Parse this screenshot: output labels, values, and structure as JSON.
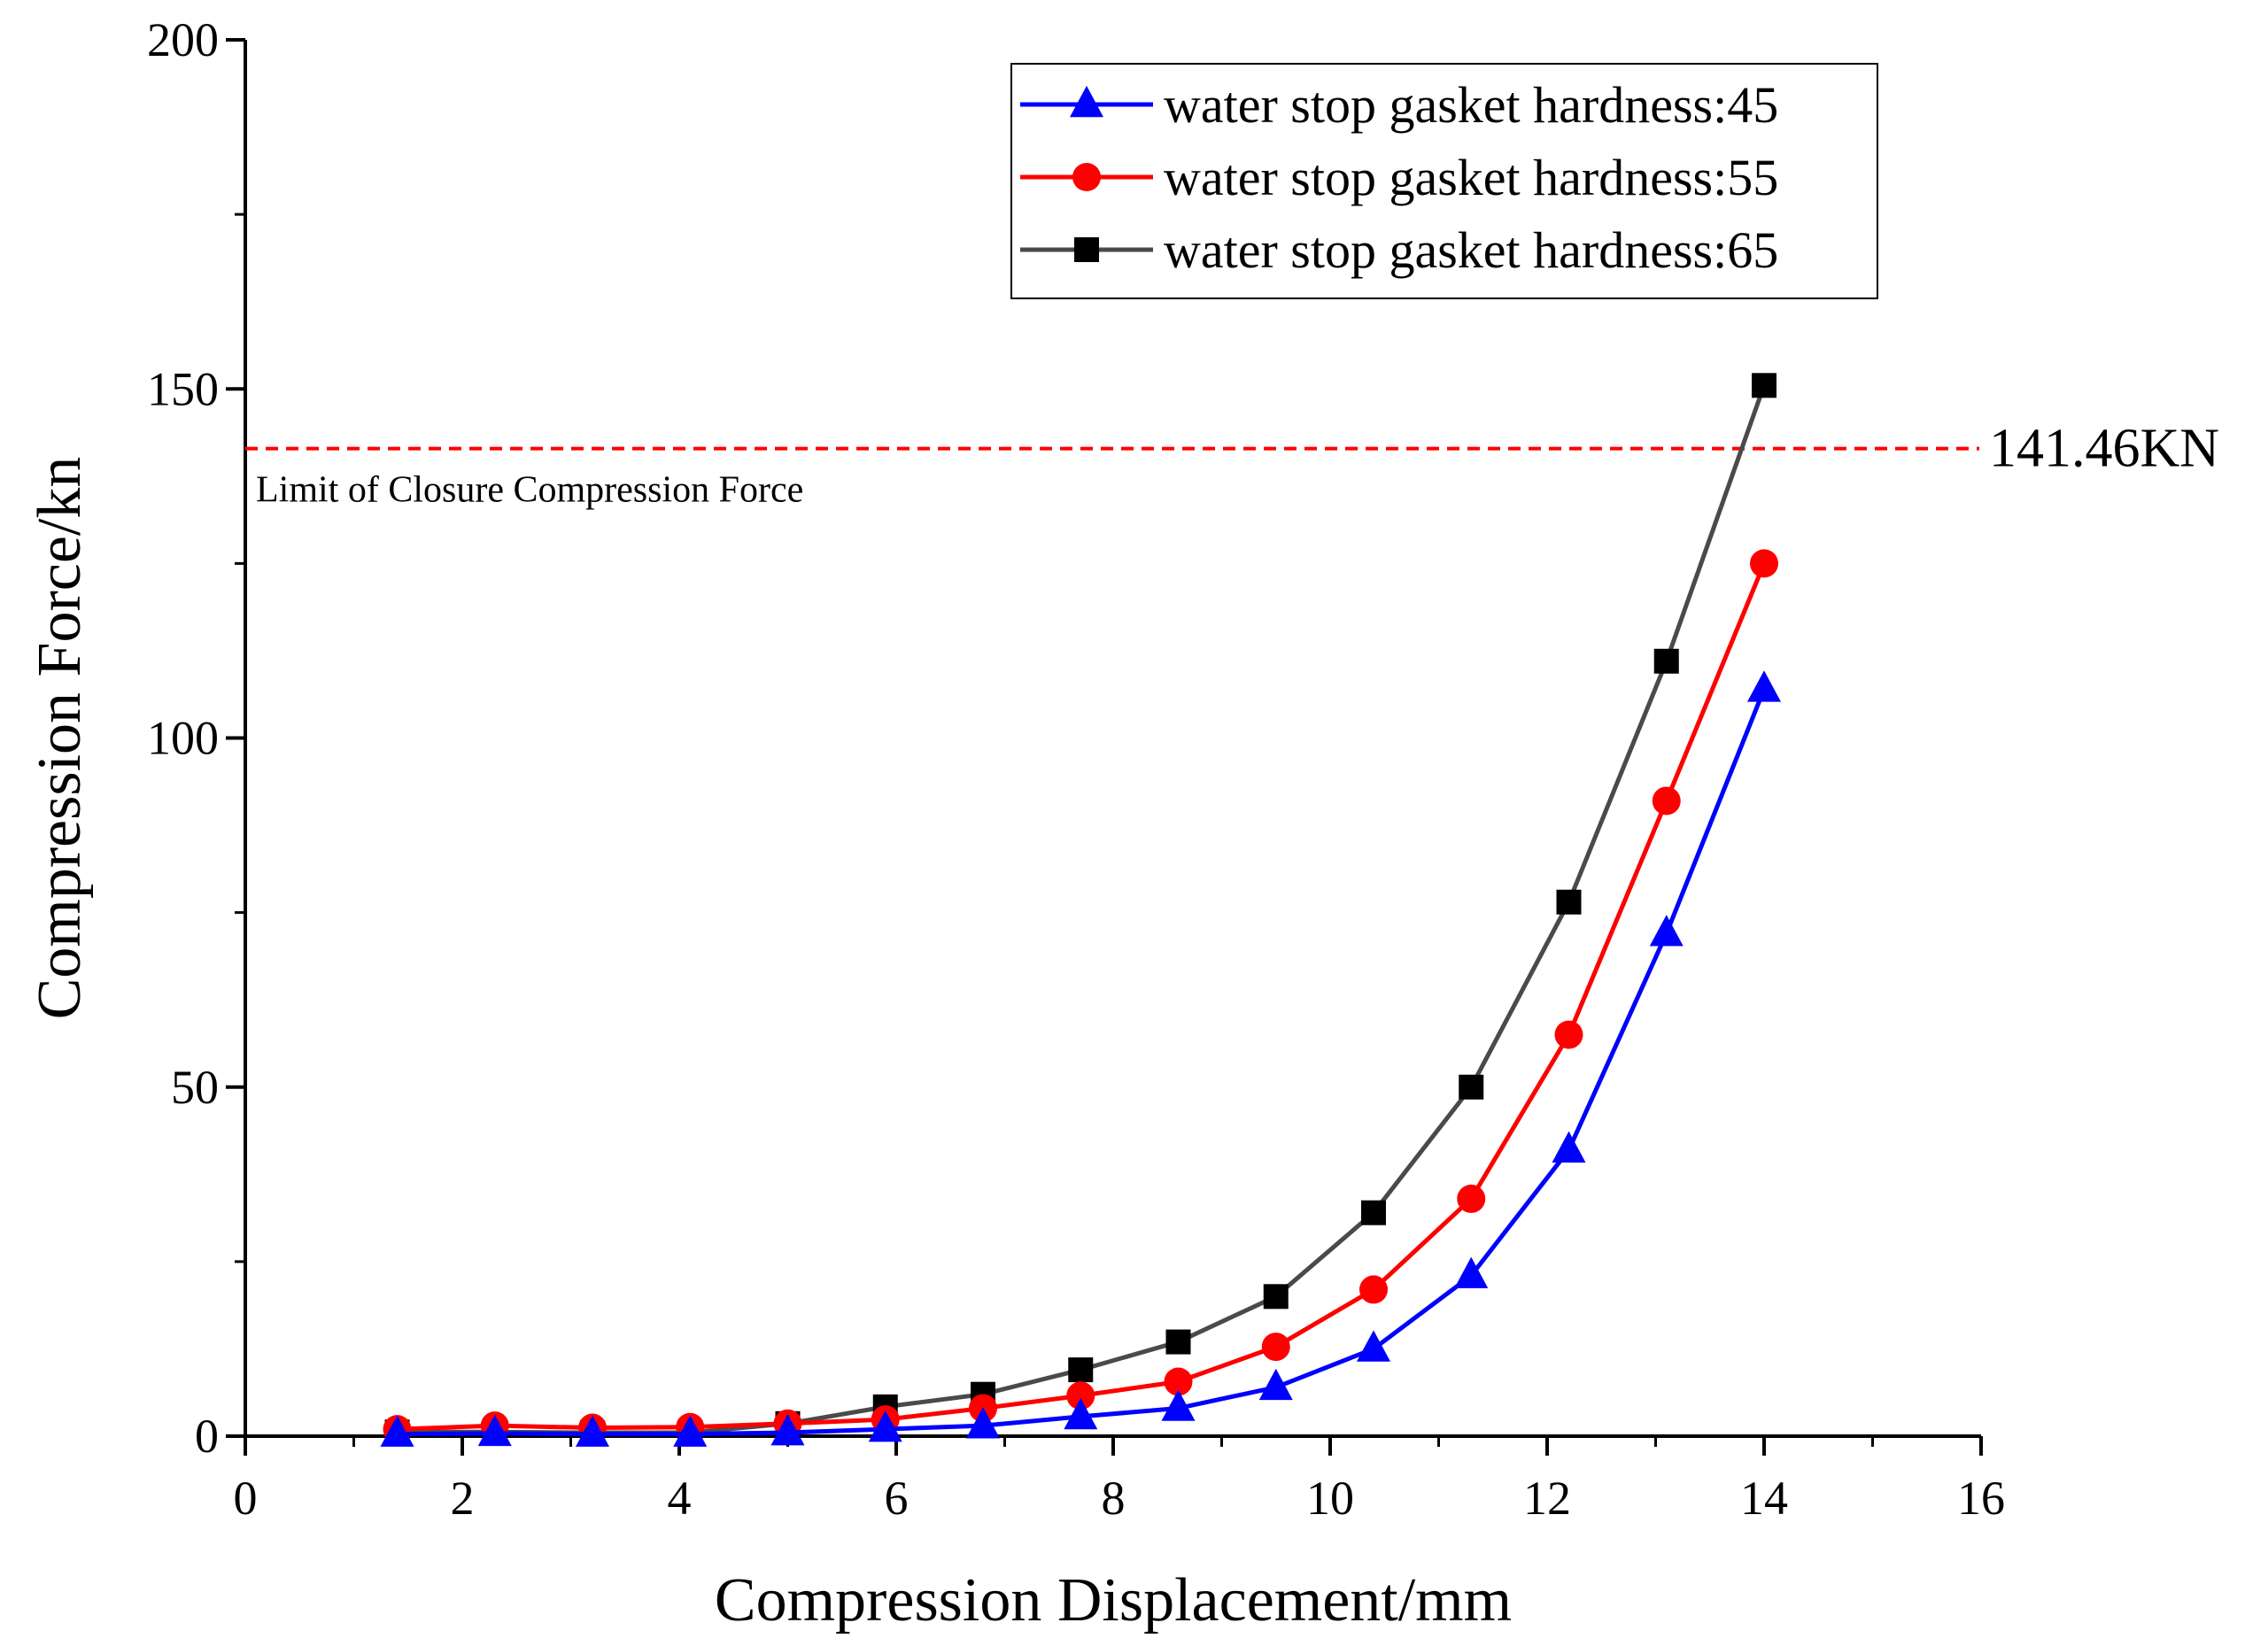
{
  "chart_data": {
    "type": "line",
    "title": "",
    "xlabel": "Compression Displacement/mm",
    "ylabel": "Compression Force/kn",
    "xlim": [
      0,
      16
    ],
    "ylim": [
      0,
      200
    ],
    "xticks": [
      0,
      2,
      4,
      6,
      8,
      10,
      12,
      14,
      16
    ],
    "xtick_labels": [
      "0",
      "2",
      "4",
      "6",
      "8",
      "10",
      "12",
      "14",
      "16"
    ],
    "yticks": [
      0,
      50,
      100,
      150,
      200
    ],
    "ytick_labels": [
      "0",
      "50",
      "100",
      "150",
      "200"
    ],
    "grid": false,
    "legend_position": "top-right",
    "x": [
      1.4,
      2.3,
      3.2,
      4.1,
      5.0,
      5.9,
      6.8,
      7.7,
      8.6,
      9.5,
      10.4,
      11.3,
      12.2,
      13.1,
      14.0
    ],
    "series": [
      {
        "name": "water stop gasket hardness:45",
        "color": "#0000ff",
        "marker": "triangle",
        "values": [
          0.3,
          0.4,
          0.3,
          0.3,
          0.5,
          1.0,
          1.5,
          2.8,
          4.0,
          7.0,
          12.5,
          23.0,
          41.0,
          72.0,
          107.0
        ]
      },
      {
        "name": "water stop gasket hardness:55",
        "color": "#ff0000",
        "marker": "circle",
        "values": [
          1.0,
          1.5,
          1.2,
          1.3,
          1.8,
          2.4,
          4.0,
          5.8,
          7.8,
          12.8,
          21.0,
          34.0,
          57.5,
          91.0,
          125.0
        ]
      },
      {
        "name": "water stop gasket hardness:65",
        "color": "#000000",
        "marker": "square",
        "line_color": "#4a4a4a",
        "values": [
          0.6,
          0.6,
          0.5,
          0.5,
          1.8,
          4.2,
          6.0,
          9.5,
          13.5,
          20.0,
          32.0,
          50.0,
          76.5,
          111.0,
          150.5
        ]
      }
    ],
    "annotations": {
      "limit_line_value": 141.46,
      "limit_line_color": "#ff0000",
      "limit_label": "Limit of Closure Compression Force",
      "limit_value_label": "141.46KN"
    }
  }
}
